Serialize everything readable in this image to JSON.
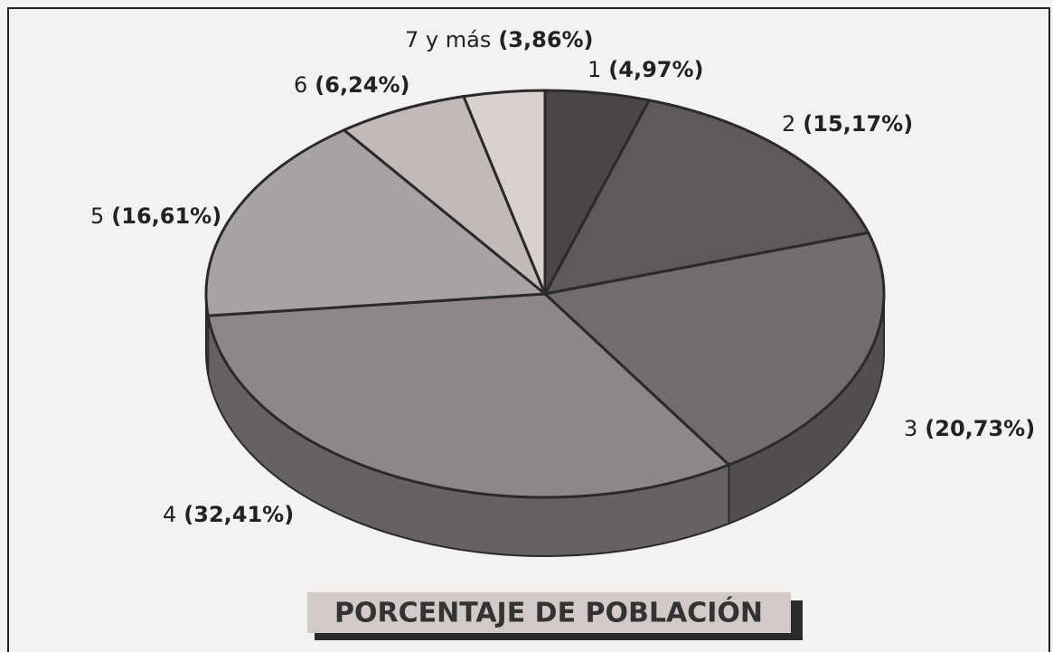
{
  "chart_data": {
    "type": "pie",
    "title": "PORCENTAJE DE POBLACIÓN",
    "categories": [
      "1",
      "2",
      "3",
      "4",
      "5",
      "6",
      "7 y más"
    ],
    "values": [
      4.97,
      15.17,
      20.73,
      32.41,
      16.61,
      6.24,
      3.86
    ],
    "value_labels": [
      "(4,97%)",
      "(15,17%)",
      "(20,73%)",
      "(32,41%)",
      "(16,61%)",
      "(6,24%)",
      "(3,86%)"
    ],
    "colors": [
      "#4b4548",
      "#5f595c",
      "#726c6f",
      "#8d8789",
      "#a8a2a2",
      "#c1bab8",
      "#d9d1ce"
    ]
  }
}
